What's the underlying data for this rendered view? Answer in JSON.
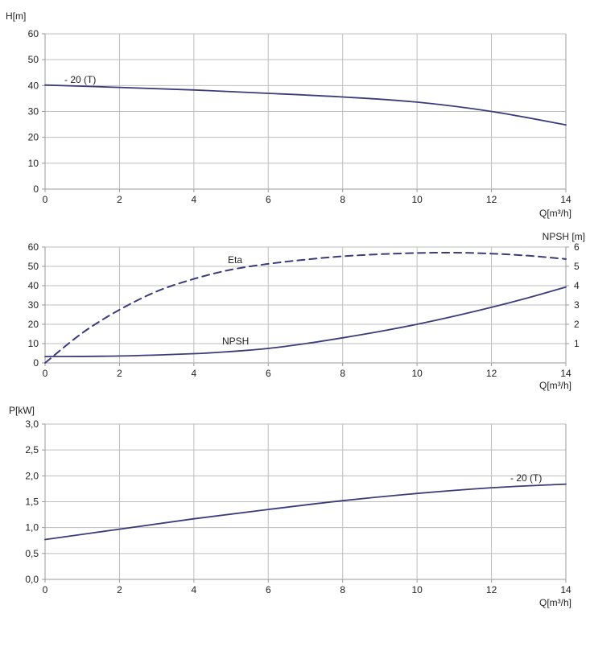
{
  "chart_data": [
    {
      "type": "line",
      "title": "",
      "xlabel": "Q[m³/h]",
      "ylabel": "H[m]",
      "x_ticks": [
        "0",
        "2",
        "4",
        "6",
        "8",
        "10",
        "12",
        "14"
      ],
      "y_ticks": [
        "0",
        "10",
        "20",
        "30",
        "40",
        "50",
        "60"
      ],
      "xlim": [
        0,
        14
      ],
      "ylim": [
        0,
        60
      ],
      "grid": true,
      "color": "#3b3b7a",
      "series": [
        {
          "name": "- 20 (T)",
          "x": [
            0,
            2,
            4,
            6,
            8,
            10,
            12,
            14
          ],
          "y": [
            40.2,
            39.3,
            38.3,
            37.0,
            35.6,
            33.6,
            30.0,
            24.8
          ]
        }
      ]
    },
    {
      "type": "line",
      "title": "",
      "xlabel": "Q[m³/h]",
      "ylabel": "",
      "ylabel_right": "NPSH [m]",
      "x_ticks": [
        "0",
        "2",
        "4",
        "6",
        "8",
        "10",
        "12",
        "14"
      ],
      "y_ticks": [
        "0",
        "10",
        "20",
        "30",
        "40",
        "50",
        "60"
      ],
      "y_ticks_right": [
        "1",
        "2",
        "3",
        "4",
        "5",
        "6"
      ],
      "xlim": [
        0,
        14
      ],
      "ylim": [
        0,
        60
      ],
      "ylim_right": [
        0,
        6
      ],
      "grid": true,
      "color": "#3b3b7a",
      "series": [
        {
          "name": "Eta",
          "axis": "left",
          "dashed": true,
          "x": [
            0,
            1,
            2,
            3,
            4,
            5,
            6,
            7,
            8,
            9,
            10,
            11,
            12,
            13,
            14
          ],
          "y": [
            0,
            15.5,
            27.5,
            37,
            43.5,
            48.3,
            51.3,
            53.5,
            55.2,
            56.3,
            56.9,
            57.1,
            56.6,
            55.5,
            53.8
          ]
        },
        {
          "name": "NPSH",
          "axis": "right",
          "dashed": false,
          "x": [
            0,
            2,
            4,
            5,
            6,
            7,
            8,
            9,
            10,
            11,
            12,
            13,
            14
          ],
          "y": [
            0.33,
            0.36,
            0.48,
            0.59,
            0.75,
            1.0,
            1.3,
            1.63,
            2.0,
            2.42,
            2.88,
            3.38,
            3.93
          ]
        }
      ]
    },
    {
      "type": "line",
      "title": "",
      "xlabel": "Q[m³/h]",
      "ylabel": "P[kW]",
      "x_ticks": [
        "0",
        "2",
        "4",
        "6",
        "8",
        "10",
        "12",
        "14"
      ],
      "y_ticks": [
        "0,0",
        "0,5",
        "1,0",
        "1,5",
        "2,0",
        "2,5",
        "3,0"
      ],
      "xlim": [
        0,
        14
      ],
      "ylim": [
        0,
        3
      ],
      "grid": true,
      "color": "#3b3b7a",
      "series": [
        {
          "name": "- 20 (T)",
          "x": [
            0,
            2,
            4,
            6,
            8,
            10,
            12,
            14
          ],
          "y": [
            0.77,
            0.97,
            1.17,
            1.35,
            1.52,
            1.66,
            1.77,
            1.84
          ]
        }
      ]
    }
  ]
}
